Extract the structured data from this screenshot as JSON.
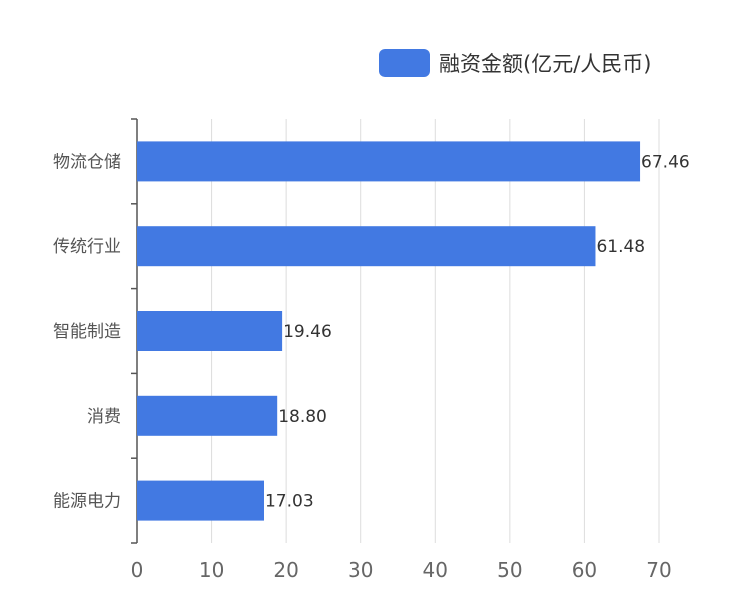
{
  "chart_data": {
    "type": "bar",
    "orientation": "horizontal",
    "categories": [
      "物流仓储",
      "传统行业",
      "智能制造",
      "消费",
      "能源电力"
    ],
    "series": [
      {
        "name": "融资金额(亿元/人民币)",
        "color": "#4279e2",
        "values": [
          67.46,
          61.48,
          19.46,
          18.8,
          17.03
        ],
        "labels": [
          "67.46",
          "61.48",
          "19.46",
          "18.80",
          "17.03"
        ]
      }
    ],
    "xlim": [
      0,
      70
    ],
    "xticks": [
      0,
      10,
      20,
      30,
      40,
      50,
      60,
      70
    ],
    "grid": "vertical",
    "legend_position": "top-right"
  }
}
